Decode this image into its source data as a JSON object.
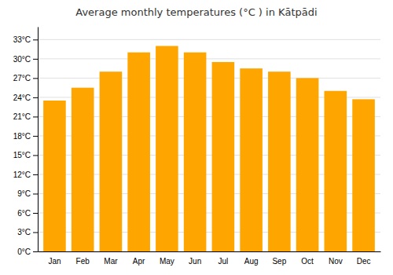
{
  "chart_data": {
    "type": "bar",
    "title": "Average monthly temperatures (°C ) in Kātpādi",
    "categories": [
      "Jan",
      "Feb",
      "Mar",
      "Apr",
      "May",
      "Jun",
      "Jul",
      "Aug",
      "Sep",
      "Oct",
      "Nov",
      "Dec"
    ],
    "values": [
      23.5,
      25.5,
      28.0,
      31.0,
      32.0,
      31.0,
      29.5,
      28.5,
      28.0,
      27.0,
      25.0,
      23.7
    ],
    "color": "#FFA500",
    "ylim": [
      0,
      35
    ],
    "yticks": [
      {
        "value": 0,
        "label": "0°C"
      },
      {
        "value": 3,
        "label": "3°C"
      },
      {
        "value": 6,
        "label": "6°C"
      },
      {
        "value": 9,
        "label": "9°C"
      },
      {
        "value": 12,
        "label": "12°C"
      },
      {
        "value": 15,
        "label": "15°C"
      },
      {
        "value": 18,
        "label": "18°C"
      },
      {
        "value": 21,
        "label": "21°C"
      },
      {
        "value": 24,
        "label": "24°C"
      },
      {
        "value": 27,
        "label": "27°C"
      },
      {
        "value": 30,
        "label": "30°C"
      },
      {
        "value": 33,
        "label": "33°C"
      }
    ],
    "grid": true
  }
}
